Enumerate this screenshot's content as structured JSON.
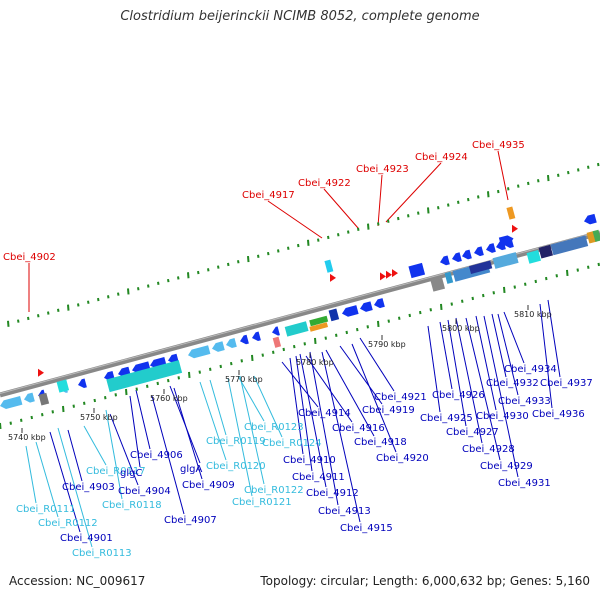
{
  "title": "Clostridium beijerinckii NCIMB 8052, complete genome",
  "footer": {
    "accession": "Accession: NC_009617",
    "genome_info": "Topology: circular; Length: 6,000,632 bp; Genes: 5,160"
  },
  "colors": {
    "red_label": "#dd0000",
    "blue_label": "#0000bb",
    "cyan_label": "#33bbdd",
    "backbone": "#888888",
    "forward_arrow": "#1133ee",
    "light_blue_arrow": "#55bbee",
    "teal_block": "#22cccc",
    "green_tick": "#228822"
  },
  "scale_labels": [
    "5740 kbp",
    "5750 kbp",
    "5760 kbp",
    "5770 kbp",
    "5780 kbp",
    "5790 kbp",
    "5800 kbp",
    "5810 kbp"
  ],
  "labels_red": [
    "Cbei_4902",
    "Cbei_4917",
    "Cbei_4922",
    "Cbei_4923",
    "Cbei_4924",
    "Cbei_4935"
  ],
  "labels_bottom": [
    {
      "text": "Cbei_R0111",
      "color": "cyan"
    },
    {
      "text": "Cbei_R0112",
      "color": "cyan"
    },
    {
      "text": "Cbei_4901",
      "color": "blue"
    },
    {
      "text": "Cbei_R0113",
      "color": "cyan"
    },
    {
      "text": "Cbei_4903",
      "color": "blue"
    },
    {
      "text": "Cbei_R0117",
      "color": "cyan"
    },
    {
      "text": "glgC",
      "color": "blue"
    },
    {
      "text": "Cbei_4904",
      "color": "blue"
    },
    {
      "text": "Cbei_R0118",
      "color": "cyan"
    },
    {
      "text": "Cbei_4906",
      "color": "blue"
    },
    {
      "text": "glgA",
      "color": "blue"
    },
    {
      "text": "Cbei_4907",
      "color": "blue"
    },
    {
      "text": "Cbei_4909",
      "color": "blue"
    },
    {
      "text": "Cbei_R0119",
      "color": "cyan"
    },
    {
      "text": "Cbei_R0120",
      "color": "cyan"
    },
    {
      "text": "Cbei_R0123",
      "color": "cyan"
    },
    {
      "text": "Cbei_R0124",
      "color": "cyan"
    },
    {
      "text": "Cbei_R0122",
      "color": "cyan"
    },
    {
      "text": "Cbei_R0121",
      "color": "cyan"
    },
    {
      "text": "Cbei_4910",
      "color": "blue"
    },
    {
      "text": "Cbei_4911",
      "color": "blue"
    },
    {
      "text": "Cbei_4912",
      "color": "blue"
    },
    {
      "text": "Cbei_4913",
      "color": "blue"
    },
    {
      "text": "Cbei_4914",
      "color": "blue"
    },
    {
      "text": "Cbei_4915",
      "color": "blue"
    },
    {
      "text": "Cbei_4916",
      "color": "blue"
    },
    {
      "text": "Cbei_4918",
      "color": "blue"
    },
    {
      "text": "Cbei_4919",
      "color": "blue"
    },
    {
      "text": "Cbei_4920",
      "color": "blue"
    },
    {
      "text": "Cbei_4921",
      "color": "blue"
    },
    {
      "text": "Cbei_4925",
      "color": "blue"
    },
    {
      "text": "Cbei_4926",
      "color": "blue"
    },
    {
      "text": "Cbei_4927",
      "color": "blue"
    },
    {
      "text": "Cbei_4928",
      "color": "blue"
    },
    {
      "text": "Cbei_4929",
      "color": "blue"
    },
    {
      "text": "Cbei_4930",
      "color": "blue"
    },
    {
      "text": "Cbei_4931",
      "color": "blue"
    },
    {
      "text": "Cbei_4932",
      "color": "blue"
    },
    {
      "text": "Cbei_4933",
      "color": "blue"
    },
    {
      "text": "Cbei_4934",
      "color": "blue"
    },
    {
      "text": "Cbei_4936",
      "color": "blue"
    },
    {
      "text": "Cbei_4937",
      "color": "blue"
    }
  ]
}
